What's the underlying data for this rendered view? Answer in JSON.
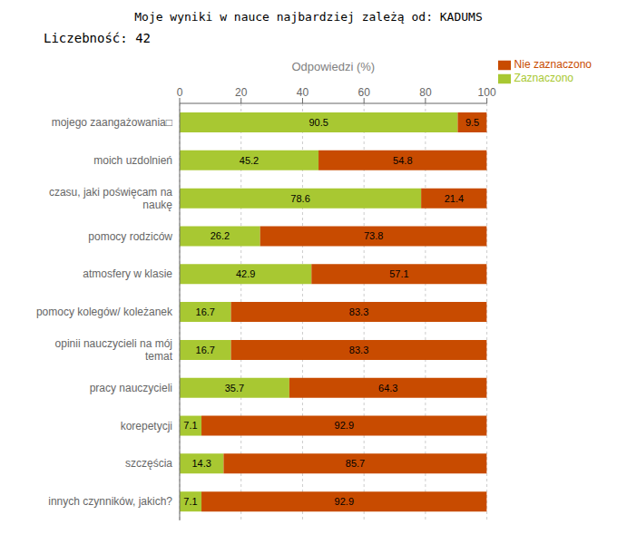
{
  "chart_data": {
    "type": "bar",
    "orientation": "horizontal",
    "stacked": true,
    "data_labels": true,
    "grid": true,
    "legend": "upper right",
    "title": "Moje wyniki w nauce najbardziej zależą od:  KADUMS",
    "subtitle": "Liczebność:  42",
    "x_label": "Odpowiedzi (%)",
    "categories": [
      "mojego zaangażowania□",
      "moich uzdolnień",
      "czasu, jaki poświęcam na\nnaukę",
      "pomocy rodziców",
      "atmosfery w klasie",
      "pomocy kolegów/ koleżanek",
      "opinii nauczycieli na mój\ntemat",
      "pracy nauczycieli",
      "korepetycji",
      "szczęścia",
      "innych czynników, jakich?"
    ],
    "series": [
      {
        "name": "Zaznaczono",
        "color": "#a8c832",
        "values": [
          90.5,
          45.2,
          78.6,
          26.2,
          42.9,
          16.7,
          16.7,
          35.7,
          7.1,
          14.3,
          7.1
        ]
      },
      {
        "name": "Nie zaznaczono",
        "color": "#c84b00",
        "values": [
          9.5,
          54.8,
          21.4,
          73.8,
          57.1,
          83.3,
          83.3,
          64.3,
          92.9,
          85.7,
          92.9
        ]
      }
    ],
    "xlim": [
      0,
      100
    ],
    "xticks": [
      0,
      20,
      40,
      60,
      80,
      100
    ]
  }
}
